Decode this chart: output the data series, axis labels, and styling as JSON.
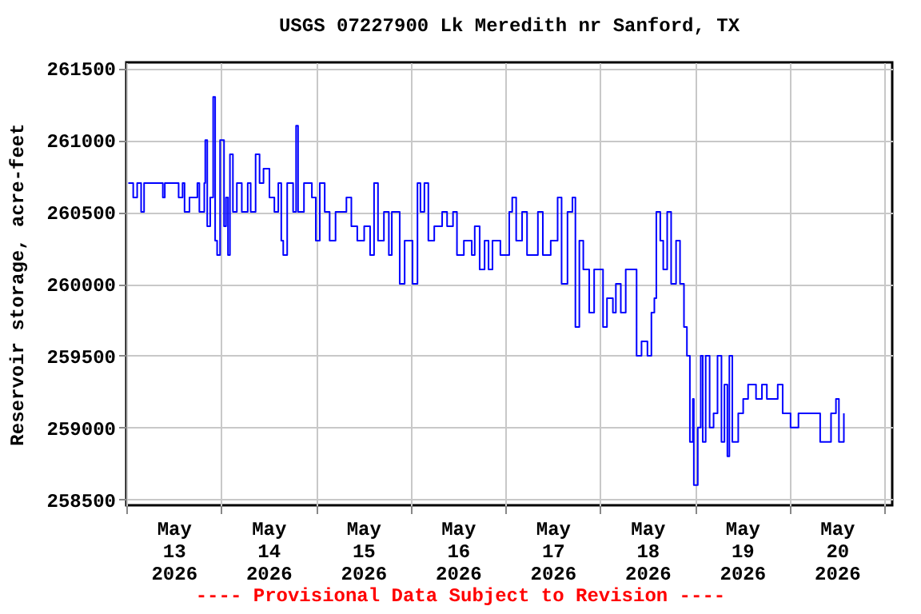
{
  "chart_data": {
    "type": "step",
    "title": "USGS 07227900 Lk Meredith nr Sanford, TX",
    "ylabel": "Reservoir storage, acre-feet",
    "annotations": [
      "---- Provisional Data Subject to Revision ----"
    ],
    "x": [
      "2026-05-13T00:30",
      "2026-05-13T01:45",
      "2026-05-13T02:45",
      "2026-05-13T03:45",
      "2026-05-13T04:30",
      "2026-05-13T06:30",
      "2026-05-13T09:15",
      "2026-05-13T09:45",
      "2026-05-13T13:15",
      "2026-05-13T14:15",
      "2026-05-13T14:45",
      "2026-05-13T16:00",
      "2026-05-13T18:00",
      "2026-05-13T18:30",
      "2026-05-13T19:45",
      "2026-05-13T20:00",
      "2026-05-13T20:30",
      "2026-05-13T21:15",
      "2026-05-13T22:00",
      "2026-05-13T22:30",
      "2026-05-13T23:00",
      "2026-05-13T23:45",
      "2026-05-14T00:45",
      "2026-05-14T01:15",
      "2026-05-14T01:45",
      "2026-05-14T02:15",
      "2026-05-14T03:00",
      "2026-05-14T04:00",
      "2026-05-14T05:15",
      "2026-05-14T06:45",
      "2026-05-14T07:30",
      "2026-05-14T08:45",
      "2026-05-14T09:45",
      "2026-05-14T10:45",
      "2026-05-14T12:15",
      "2026-05-14T13:30",
      "2026-05-14T14:30",
      "2026-05-14T15:15",
      "2026-05-14T15:45",
      "2026-05-14T16:45",
      "2026-05-14T18:15",
      "2026-05-14T19:00",
      "2026-05-14T19:30",
      "2026-05-14T21:00",
      "2026-05-14T23:00",
      "2026-05-15T00:00",
      "2026-05-15T01:00",
      "2026-05-15T02:15",
      "2026-05-15T03:30",
      "2026-05-15T05:00",
      "2026-05-15T07:45",
      "2026-05-15T09:00",
      "2026-05-15T10:30",
      "2026-05-15T12:15",
      "2026-05-15T13:45",
      "2026-05-15T14:45",
      "2026-05-15T15:45",
      "2026-05-15T17:15",
      "2026-05-15T18:30",
      "2026-05-15T19:15",
      "2026-05-15T21:15",
      "2026-05-15T22:30",
      "2026-05-16T00:30",
      "2026-05-16T01:45",
      "2026-05-16T02:30",
      "2026-05-16T03:30",
      "2026-05-16T04:30",
      "2026-05-16T06:00",
      "2026-05-16T08:00",
      "2026-05-16T09:15",
      "2026-05-16T10:45",
      "2026-05-16T11:45",
      "2026-05-16T13:30",
      "2026-05-16T15:30",
      "2026-05-16T16:15",
      "2026-05-16T17:30",
      "2026-05-16T18:45",
      "2026-05-16T19:45",
      "2026-05-16T20:45",
      "2026-05-16T22:45",
      "2026-05-17T00:15",
      "2026-05-17T01:00",
      "2026-05-17T01:45",
      "2026-05-17T02:45",
      "2026-05-17T04:15",
      "2026-05-17T05:30",
      "2026-05-17T07:00",
      "2026-05-17T08:15",
      "2026-05-17T09:30",
      "2026-05-17T11:30",
      "2026-05-17T13:15",
      "2026-05-17T14:15",
      "2026-05-17T15:45",
      "2026-05-17T17:00",
      "2026-05-17T17:45",
      "2026-05-17T18:45",
      "2026-05-17T19:45",
      "2026-05-17T21:15",
      "2026-05-17T22:30",
      "2026-05-18T00:00",
      "2026-05-18T00:45",
      "2026-05-18T01:45",
      "2026-05-18T03:15",
      "2026-05-18T04:00",
      "2026-05-18T05:15",
      "2026-05-18T06:30",
      "2026-05-18T08:15",
      "2026-05-18T09:15",
      "2026-05-18T10:30",
      "2026-05-18T12:00",
      "2026-05-18T13:00",
      "2026-05-18T13:45",
      "2026-05-18T14:15",
      "2026-05-18T15:15",
      "2026-05-18T16:00",
      "2026-05-18T17:00",
      "2026-05-18T18:00",
      "2026-05-18T19:15",
      "2026-05-18T20:15",
      "2026-05-18T21:15",
      "2026-05-18T22:00",
      "2026-05-18T22:45",
      "2026-05-18T23:30",
      "2026-05-18T23:45",
      "2026-05-19T00:45",
      "2026-05-19T01:30",
      "2026-05-19T02:00",
      "2026-05-19T02:45",
      "2026-05-19T03:45",
      "2026-05-19T04:45",
      "2026-05-19T05:45",
      "2026-05-19T06:45",
      "2026-05-19T07:30",
      "2026-05-19T08:15",
      "2026-05-19T08:45",
      "2026-05-19T09:30",
      "2026-05-19T11:00",
      "2026-05-19T12:15",
      "2026-05-19T13:30",
      "2026-05-19T15:30",
      "2026-05-19T17:00",
      "2026-05-19T18:15",
      "2026-05-19T21:00",
      "2026-05-19T22:15",
      "2026-05-20T00:15",
      "2026-05-20T02:15",
      "2026-05-20T05:00",
      "2026-05-20T07:45",
      "2026-05-20T10:30",
      "2026-05-20T11:45",
      "2026-05-20T12:30",
      "2026-05-20T13:45"
    ],
    "series": [
      {
        "color": "#0000ff",
        "values": [
          260700,
          260600,
          260700,
          260500,
          260700,
          260700,
          260600,
          260700,
          260600,
          260700,
          260500,
          260600,
          260700,
          260500,
          260700,
          261000,
          260400,
          260600,
          261300,
          260300,
          260200,
          261000,
          260400,
          260600,
          260200,
          260900,
          260500,
          260700,
          260500,
          260700,
          260500,
          260900,
          260700,
          260800,
          260600,
          260500,
          260700,
          260300,
          260200,
          260700,
          260500,
          261100,
          260500,
          260700,
          260600,
          260300,
          260700,
          260500,
          260300,
          260500,
          260600,
          260400,
          260300,
          260400,
          260200,
          260700,
          260300,
          260500,
          260200,
          260500,
          260000,
          260300,
          260000,
          260700,
          260500,
          260700,
          260300,
          260400,
          260500,
          260400,
          260500,
          260200,
          260300,
          260200,
          260400,
          260100,
          260300,
          260100,
          260300,
          260200,
          260200,
          260500,
          260600,
          260300,
          260500,
          260200,
          260200,
          260500,
          260200,
          260300,
          260600,
          260000,
          260500,
          260600,
          259700,
          260300,
          260100,
          259800,
          260100,
          260100,
          259700,
          259900,
          259800,
          260000,
          259800,
          260100,
          260100,
          259500,
          259600,
          259500,
          259800,
          259900,
          260500,
          260300,
          260100,
          260500,
          260000,
          260300,
          260000,
          259700,
          259500,
          258900,
          259200,
          258600,
          259000,
          259500,
          258900,
          259500,
          259000,
          259100,
          259500,
          258900,
          259300,
          258800,
          259500,
          258900,
          259100,
          259200,
          259300,
          259200,
          259300,
          259200,
          259300,
          259100,
          259000,
          259100,
          259100,
          258900,
          259100,
          259200,
          258900,
          259100
        ]
      }
    ],
    "xlim": [
      "2026-05-13T00:00",
      "2026-05-21T02:00"
    ],
    "xticks": [
      {
        "value": "2026-05-13T00:00",
        "label": null
      },
      {
        "value": "2026-05-13T12:00",
        "label": "May 13 2026"
      },
      {
        "value": "2026-05-14T00:00",
        "label": null
      },
      {
        "value": "2026-05-14T12:00",
        "label": "May 14 2026"
      },
      {
        "value": "2026-05-15T00:00",
        "label": null
      },
      {
        "value": "2026-05-15T12:00",
        "label": "May 15 2026"
      },
      {
        "value": "2026-05-16T00:00",
        "label": null
      },
      {
        "value": "2026-05-16T12:00",
        "label": "May 16 2026"
      },
      {
        "value": "2026-05-17T00:00",
        "label": null
      },
      {
        "value": "2026-05-17T12:00",
        "label": "May 17 2026"
      },
      {
        "value": "2026-05-18T00:00",
        "label": null
      },
      {
        "value": "2026-05-18T12:00",
        "label": "May 18 2026"
      },
      {
        "value": "2026-05-19T00:00",
        "label": null
      },
      {
        "value": "2026-05-19T12:00",
        "label": "May 19 2026"
      },
      {
        "value": "2026-05-20T00:00",
        "label": null
      },
      {
        "value": "2026-05-20T12:00",
        "label": "May 20 2026"
      },
      {
        "value": "2026-05-21T00:00",
        "label": null
      }
    ],
    "ylim": [
      258460,
      261540
    ],
    "yticks": [
      258500,
      259000,
      259500,
      260000,
      260500,
      261000,
      261500
    ],
    "grid": true
  }
}
